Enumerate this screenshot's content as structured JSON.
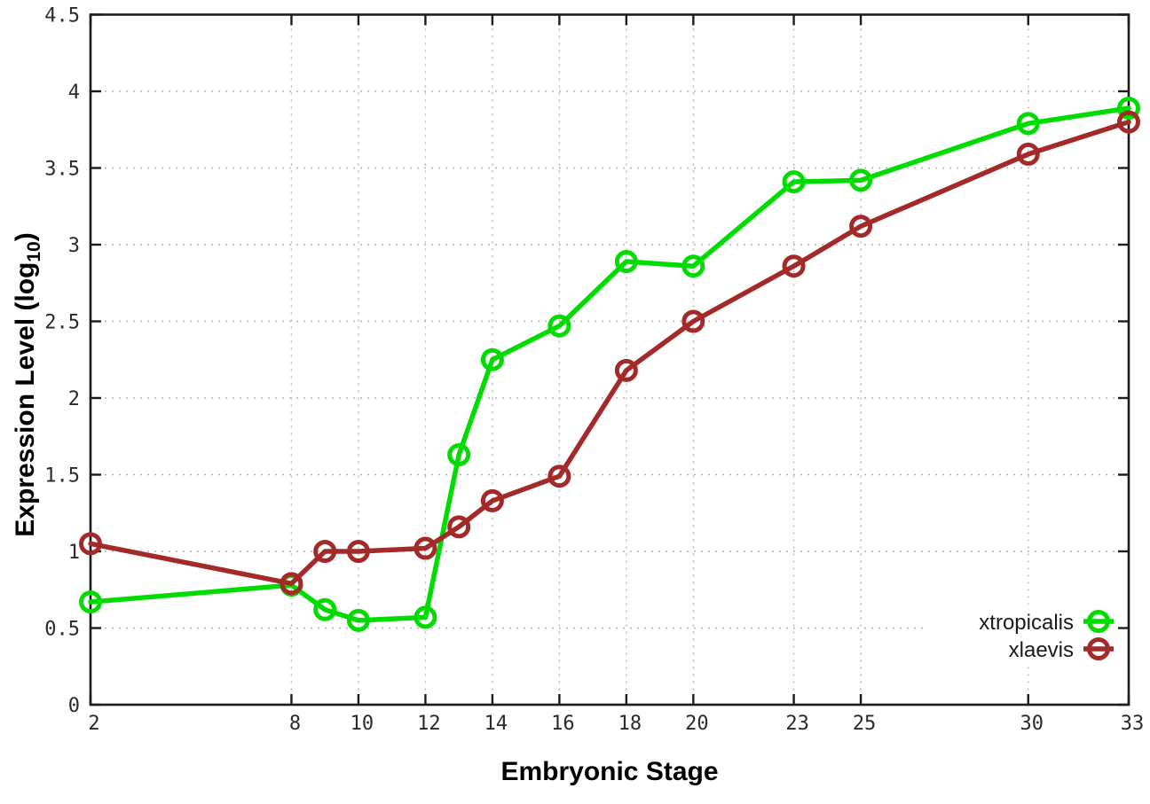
{
  "chart_data": {
    "type": "line",
    "title": "",
    "xlabel": "Embryonic Stage",
    "ylabel": {
      "prefix": "Expression Level (log",
      "subscript": "10",
      "suffix": ")"
    },
    "x": [
      2,
      8,
      9,
      10,
      12,
      13,
      14,
      16,
      18,
      20,
      23,
      25,
      30,
      33
    ],
    "series": [
      {
        "name": "xtropicalis",
        "color": "#00dc00",
        "values": [
          0.67,
          0.78,
          0.62,
          0.55,
          0.57,
          1.63,
          2.25,
          2.47,
          2.89,
          2.86,
          3.41,
          3.42,
          3.79,
          3.89
        ]
      },
      {
        "name": "xlaevis",
        "color": "#a42a2a",
        "values": [
          1.05,
          0.79,
          1.0,
          1.0,
          1.02,
          1.16,
          1.33,
          1.49,
          2.18,
          2.5,
          2.86,
          3.12,
          3.59,
          3.8
        ]
      }
    ],
    "xticks": {
      "values": [
        2,
        8,
        10,
        12,
        14,
        16,
        18,
        20,
        23,
        25,
        30,
        33
      ],
      "labels": [
        "2",
        "8",
        "10",
        "12",
        "14",
        "16",
        "18",
        "20",
        "23",
        "25",
        "30",
        "33"
      ]
    },
    "yticks": {
      "values": [
        0,
        0.5,
        1,
        1.5,
        2,
        2.5,
        3,
        3.5,
        4,
        4.5
      ],
      "labels": [
        "0",
        "0.5",
        "1",
        "1.5",
        "2",
        "2.5",
        "3",
        "3.5",
        "4",
        "4.5"
      ]
    },
    "xlim": [
      2,
      33
    ],
    "ylim": [
      0,
      4.5
    ],
    "grid": true,
    "legend": {
      "position": "bottom-right",
      "entries": [
        "xtropicalis",
        "xlaevis"
      ]
    },
    "style": {
      "axis_color": "#1c1c1c",
      "grid_color": "#b4b4b4",
      "marker": "open-circle"
    }
  }
}
